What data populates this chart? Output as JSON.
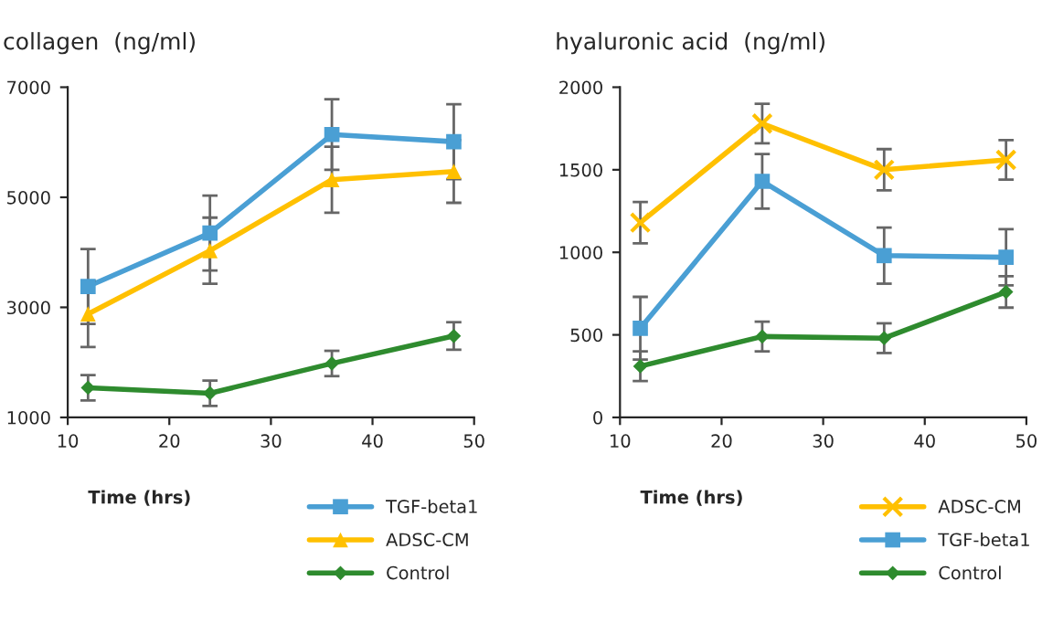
{
  "chart_data": [
    {
      "type": "line",
      "title": "collagen  (ng/ml)",
      "xlabel": "Time (hrs)",
      "x": [
        12,
        24,
        36,
        48
      ],
      "xlim": [
        10,
        50
      ],
      "xticks": [
        10,
        20,
        30,
        40,
        50
      ],
      "ylim": [
        1000,
        7000
      ],
      "yticks": [
        1000,
        3000,
        5000,
        7000
      ],
      "legend": "bottom right",
      "grid": false,
      "series": [
        {
          "name": "TGF-beta1",
          "color": "#4a9fd4",
          "marker": "square",
          "values": [
            3380,
            4350,
            6140,
            6010
          ],
          "errors": [
            680,
            680,
            640,
            680
          ]
        },
        {
          "name": "ADSC-CM",
          "color": "#ffc000",
          "marker": "triangle",
          "values": [
            2880,
            4030,
            5320,
            5470
          ],
          "errors": [
            600,
            600,
            600,
            570
          ]
        },
        {
          "name": "Control",
          "color": "#2e8b2e",
          "marker": "diamond",
          "values": [
            1540,
            1440,
            1980,
            2480
          ],
          "errors": [
            230,
            230,
            230,
            250
          ]
        }
      ]
    },
    {
      "type": "line",
      "title": "hyaluronic acid  (ng/ml)",
      "xlabel": "Time (hrs)",
      "x": [
        12,
        24,
        36,
        48
      ],
      "xlim": [
        10,
        50
      ],
      "xticks": [
        10,
        20,
        30,
        40,
        50
      ],
      "ylim": [
        0,
        2000
      ],
      "yticks": [
        0,
        500,
        1000,
        1500,
        2000
      ],
      "legend": "bottom right",
      "grid": false,
      "series": [
        {
          "name": "ADSC-CM",
          "color": "#ffc000",
          "marker": "cross",
          "values": [
            1180,
            1780,
            1500,
            1560
          ],
          "errors": [
            125,
            120,
            125,
            120
          ]
        },
        {
          "name": "TGF-beta1",
          "color": "#4a9fd4",
          "marker": "square",
          "values": [
            540,
            1430,
            980,
            970
          ],
          "errors": [
            190,
            165,
            170,
            170
          ]
        },
        {
          "name": "Control",
          "color": "#2e8b2e",
          "marker": "diamond",
          "values": [
            310,
            490,
            480,
            760
          ],
          "errors": [
            90,
            90,
            90,
            95
          ]
        }
      ]
    }
  ]
}
